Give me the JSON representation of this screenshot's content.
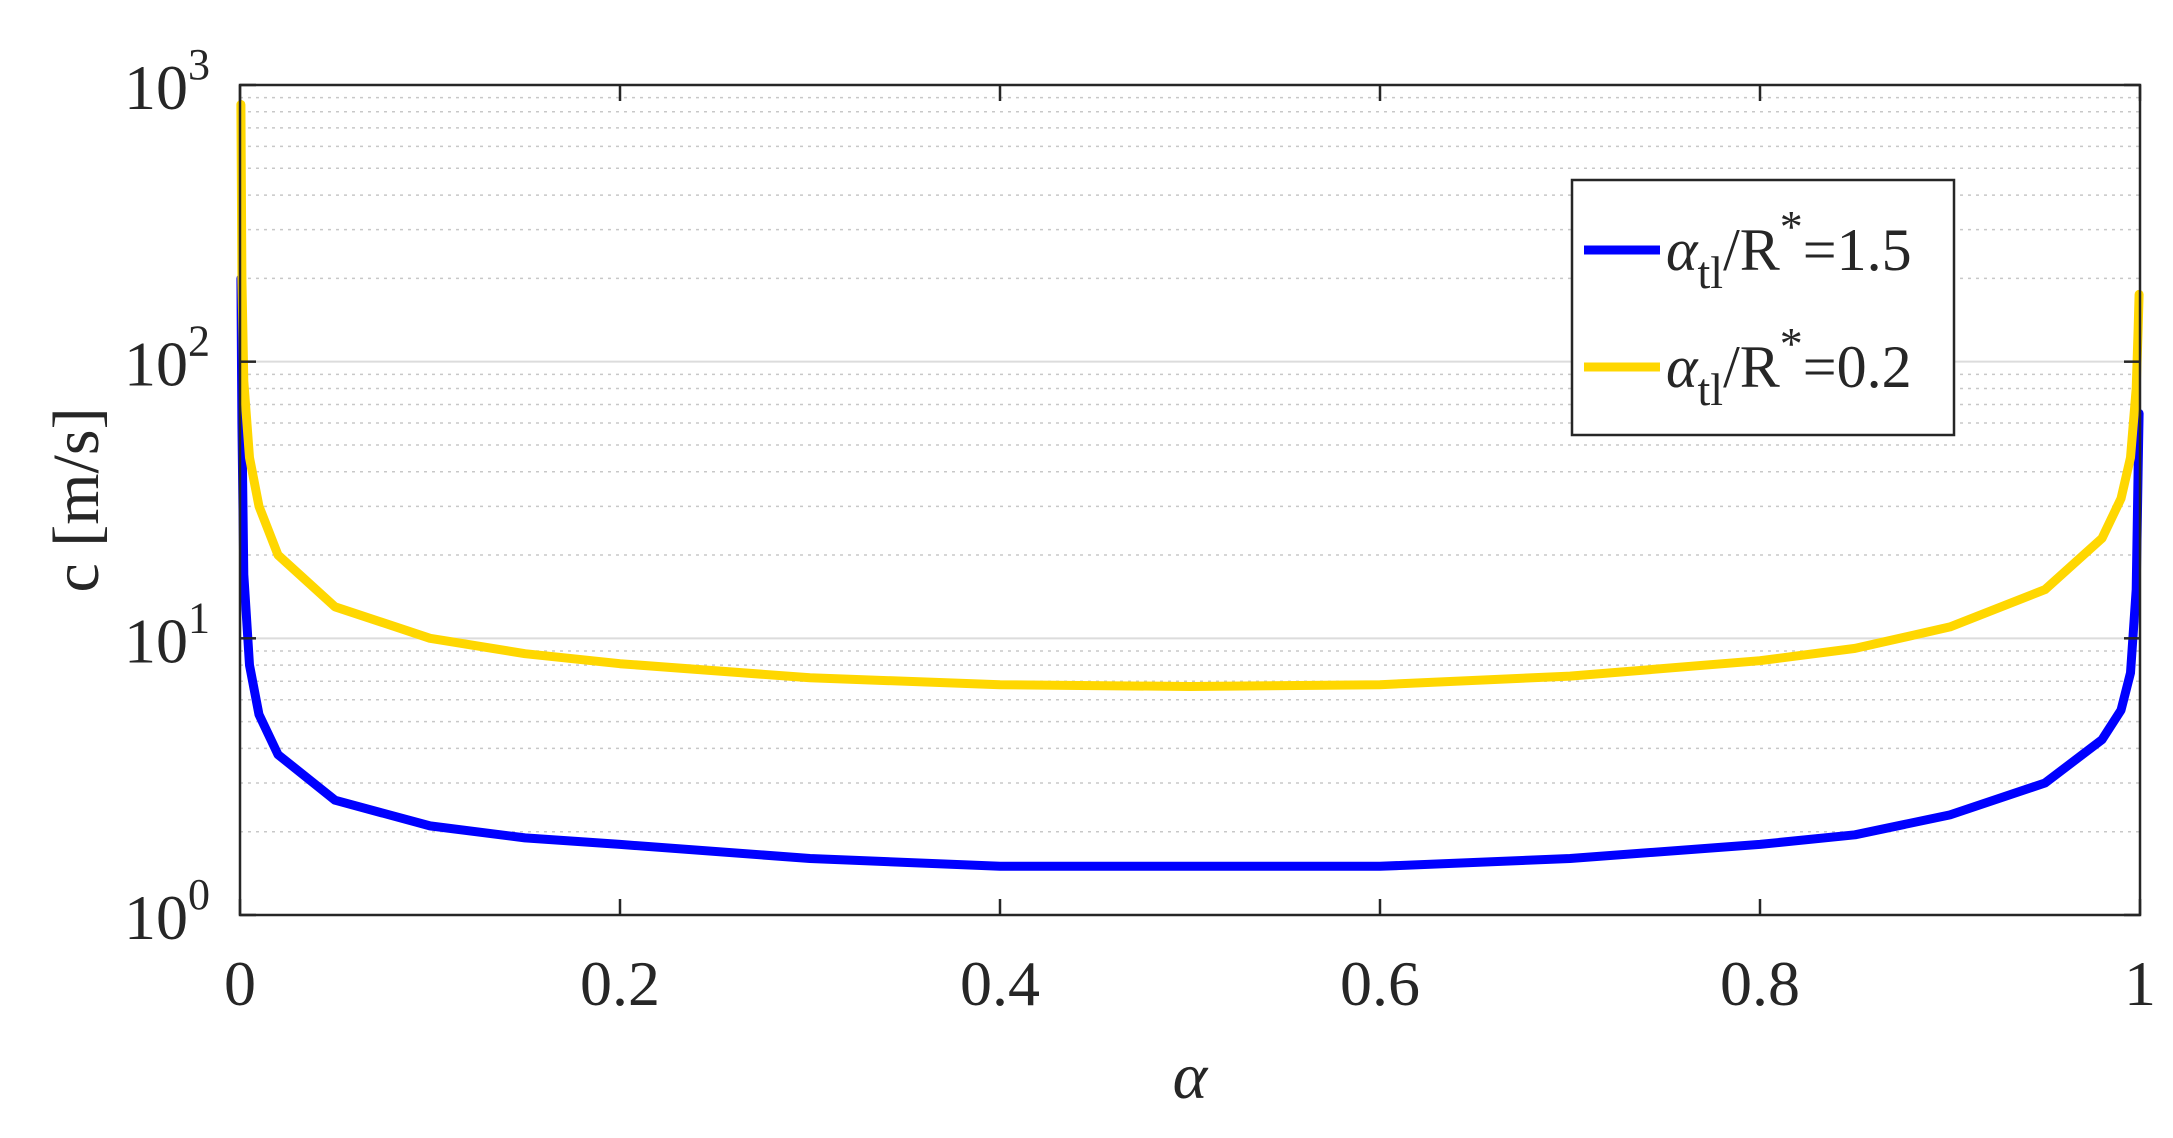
{
  "chart_data": {
    "type": "line",
    "title": "",
    "xlabel": "α",
    "ylabel": "c [m/s]",
    "xlim": [
      0,
      1
    ],
    "ylim": [
      1,
      1000
    ],
    "yscale": "log",
    "grid": true,
    "minor_grid": true,
    "legend_position": "top-right",
    "xticks": [
      0,
      0.2,
      0.4,
      0.6,
      0.8,
      1
    ],
    "xtick_labels": [
      "0",
      "0.2",
      "0.4",
      "0.6",
      "0.8",
      "1"
    ],
    "yticks": [
      {
        "base": "10",
        "exp": "0",
        "value": 1
      },
      {
        "base": "10",
        "exp": "1",
        "value": 10
      },
      {
        "base": "10",
        "exp": "2",
        "value": 100
      },
      {
        "base": "10",
        "exp": "3",
        "value": 1000
      }
    ],
    "series": [
      {
        "label_sym": "α",
        "label_sub": "tl",
        "label_mid": "/R",
        "label_sup": "*",
        "label_tail": "=1.5",
        "color": "#0000FF",
        "x": [
          0.0005,
          0.001,
          0.002,
          0.005,
          0.01,
          0.02,
          0.05,
          0.1,
          0.15,
          0.2,
          0.3,
          0.4,
          0.5,
          0.6,
          0.7,
          0.8,
          0.85,
          0.9,
          0.95,
          0.98,
          0.99,
          0.995,
          0.998,
          0.999,
          0.9995
        ],
        "y": [
          200,
          60,
          17,
          8,
          5.3,
          3.8,
          2.6,
          2.1,
          1.9,
          1.8,
          1.6,
          1.5,
          1.5,
          1.5,
          1.6,
          1.8,
          1.95,
          2.3,
          3.0,
          4.3,
          5.5,
          7.5,
          15,
          40,
          65
        ]
      },
      {
        "label_sym": "α",
        "label_sub": "tl",
        "label_mid": "/R",
        "label_sup": "*",
        "label_tail": "=0.2",
        "color": "#FFD700",
        "x": [
          0.0005,
          0.001,
          0.002,
          0.005,
          0.01,
          0.02,
          0.05,
          0.1,
          0.15,
          0.2,
          0.3,
          0.4,
          0.5,
          0.6,
          0.7,
          0.8,
          0.85,
          0.9,
          0.95,
          0.98,
          0.99,
          0.995,
          0.998,
          0.999,
          0.9995
        ],
        "y": [
          850,
          200,
          85,
          45,
          30,
          20,
          13,
          10,
          8.8,
          8.1,
          7.2,
          6.8,
          6.7,
          6.8,
          7.3,
          8.3,
          9.2,
          11,
          15,
          23,
          32,
          45,
          80,
          130,
          175
        ]
      }
    ]
  }
}
